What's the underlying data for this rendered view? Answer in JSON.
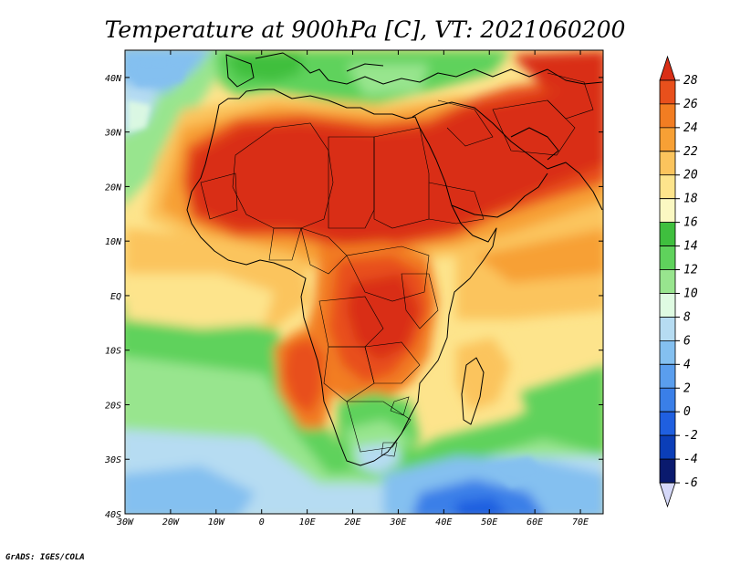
{
  "title": "Temperature at 900hPa [C], VT: 2021060200",
  "credit": "GrADS: IGES/COLA",
  "map": {
    "lon_range": [
      -30,
      75
    ],
    "lat_range": [
      -40,
      45
    ],
    "x_ticks": [
      {
        "lon": -30,
        "label": "30W"
      },
      {
        "lon": -20,
        "label": "20W"
      },
      {
        "lon": -10,
        "label": "10W"
      },
      {
        "lon": 0,
        "label": "0"
      },
      {
        "lon": 10,
        "label": "10E"
      },
      {
        "lon": 20,
        "label": "20E"
      },
      {
        "lon": 30,
        "label": "30E"
      },
      {
        "lon": 40,
        "label": "40E"
      },
      {
        "lon": 50,
        "label": "50E"
      },
      {
        "lon": 60,
        "label": "60E"
      },
      {
        "lon": 70,
        "label": "70E"
      }
    ],
    "y_ticks": [
      {
        "lat": 40,
        "label": "40N"
      },
      {
        "lat": 30,
        "label": "30N"
      },
      {
        "lat": 20,
        "label": "20N"
      },
      {
        "lat": 10,
        "label": "10N"
      },
      {
        "lat": 0,
        "label": "EQ"
      },
      {
        "lat": -10,
        "label": "10S"
      },
      {
        "lat": -20,
        "label": "20S"
      },
      {
        "lat": -30,
        "label": "30S"
      },
      {
        "lat": -40,
        "label": "40S"
      }
    ]
  },
  "colorbar": {
    "labels": [
      "28",
      "26",
      "24",
      "22",
      "20",
      "18",
      "16",
      "14",
      "12",
      "10",
      "8",
      "6",
      "4",
      "2",
      "0",
      "-2",
      "-4",
      "-6"
    ],
    "colors_top_to_bottom": [
      "#d92e16",
      "#e8501c",
      "#f27d22",
      "#f7a035",
      "#fbc45d",
      "#fde48c",
      "#fbf8c2",
      "#3fbf3e",
      "#5fd25c",
      "#98e58e",
      "#dffbe2",
      "#b6dcf2",
      "#84c0f0",
      "#5a9eee",
      "#3a7fe8",
      "#1f5fe0",
      "#0b3eb8",
      "#0a1a6e",
      "#d5d8f8"
    ]
  }
}
